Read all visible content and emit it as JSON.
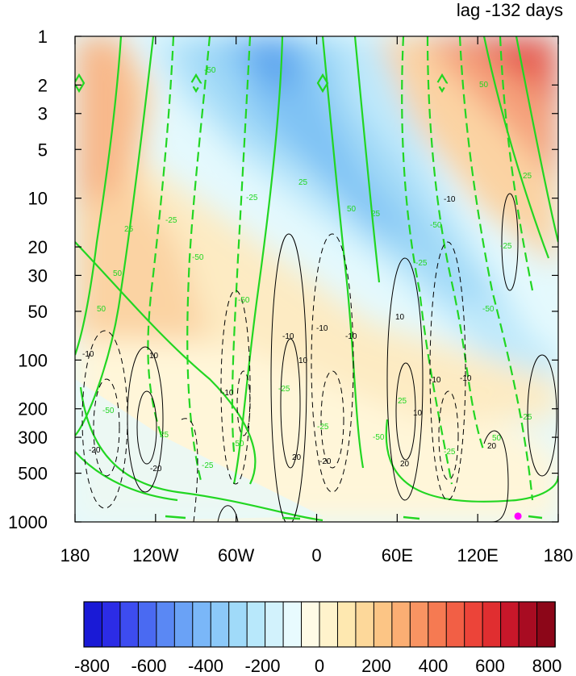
{
  "chart_data": {
    "type": "heatmap",
    "title": "lag -132 days",
    "x_ticks": [
      "180",
      "120W",
      "60W",
      "0",
      "60E",
      "120E",
      "180"
    ],
    "y_ticks": [
      "1",
      "2",
      "3",
      "5",
      "10",
      "20",
      "30",
      "50",
      "100",
      "200",
      "300",
      "500",
      "1000"
    ],
    "y_scale": "log",
    "ylim": [
      1000,
      1
    ],
    "colorbar": {
      "ticks": [
        "-800",
        "-600",
        "-400",
        "-200",
        "0",
        "200",
        "400",
        "600",
        "800"
      ],
      "range": [
        -800,
        800
      ],
      "interval": 50,
      "colors": [
        "#1a1ad6",
        "#2c2ce6",
        "#3d4cf0",
        "#4a6af2",
        "#5a88f4",
        "#6aa2f6",
        "#7ab7f8",
        "#8cc9f9",
        "#a0daf9",
        "#b8e8fb",
        "#d2f2fc",
        "#e8fbfe",
        "#fffbe6",
        "#fff3cc",
        "#fee8b0",
        "#fdd89a",
        "#fcc585",
        "#fbae73",
        "#f99462",
        "#f67a52",
        "#f25f45",
        "#ec4439",
        "#e02e30",
        "#c8172a",
        "#a80c22",
        "#8c0618"
      ]
    },
    "filled_field_colors": {
      "negative": "#7ab7f8",
      "near_zero": "#e8fbfe",
      "positive": "#fbae73"
    },
    "contour_sets": [
      {
        "color": "#22d622",
        "labels": [
          "25",
          "50",
          "-25",
          "-50"
        ]
      },
      {
        "color": "#000000",
        "labels": [
          "10",
          "20",
          "-10",
          "-20"
        ]
      }
    ],
    "marker": {
      "lon": 150,
      "pressure": 900,
      "color": "#ff00ff"
    }
  }
}
